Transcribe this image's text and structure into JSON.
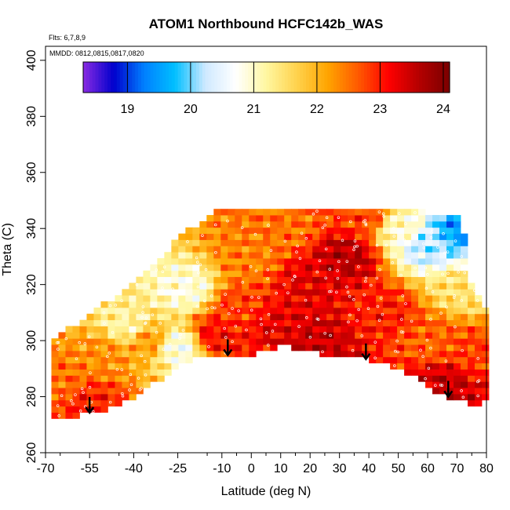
{
  "chart_data": {
    "type": "heatmap",
    "title": "ATOM1 Northbound HCFC142b_WAS",
    "annotations": {
      "flights": "Flts: 6,7,8,9",
      "dates": "MMDD: 0812,0815,0817,0820"
    },
    "xlabel": "Latitude (deg N)",
    "ylabel": "Theta (C)",
    "xlim": [
      -70,
      80
    ],
    "ylim": [
      260,
      405
    ],
    "x_ticks": [
      -70,
      -55,
      -40,
      -25,
      -10,
      0,
      10,
      20,
      30,
      40,
      50,
      60,
      70,
      80
    ],
    "x_tick_labels": [
      "-70",
      "-55",
      "-40",
      "-25",
      "-10",
      "0",
      "10",
      "20",
      "30",
      "40",
      "50",
      "60",
      "70",
      "80"
    ],
    "y_ticks": [
      260,
      280,
      300,
      320,
      340,
      360,
      380,
      400
    ],
    "y_tick_labels": [
      "260",
      "280",
      "300",
      "320",
      "340",
      "360",
      "380",
      "400"
    ],
    "colorbar": {
      "range": [
        18.3,
        24.1
      ],
      "ticks": [
        19,
        20,
        21,
        22,
        23,
        24
      ],
      "tick_labels": [
        "19",
        "20",
        "21",
        "22",
        "23",
        "24"
      ],
      "colors": [
        "#8a2be2",
        "#0000cd",
        "#0080ff",
        "#00bfff",
        "#cfe9ff",
        "#ffffff",
        "#fff7a0",
        "#ffd24d",
        "#ffa500",
        "#ff5a00",
        "#ff0000",
        "#b40000",
        "#7a0000"
      ]
    },
    "profile_markers_latitude": [
      -55,
      -8,
      39,
      67
    ],
    "domain_outline": {
      "bottom": [
        [
          -68,
          273
        ],
        [
          -60,
          273
        ],
        [
          -55,
          274
        ],
        [
          -48,
          276
        ],
        [
          -40,
          280
        ],
        [
          -30,
          287
        ],
        [
          -22,
          293
        ],
        [
          -12,
          294
        ],
        [
          -5,
          295
        ],
        [
          0,
          295
        ],
        [
          10,
          298
        ],
        [
          20,
          296
        ],
        [
          30,
          294
        ],
        [
          40,
          293
        ],
        [
          50,
          290
        ],
        [
          55,
          287
        ],
        [
          60,
          283
        ],
        [
          66,
          280
        ],
        [
          70,
          279
        ],
        [
          75,
          277
        ],
        [
          80,
          278
        ]
      ],
      "top": [
        [
          -68,
          300
        ],
        [
          -60,
          306
        ],
        [
          -50,
          313
        ],
        [
          -40,
          320
        ],
        [
          -30,
          331
        ],
        [
          -24,
          337
        ],
        [
          -18,
          342
        ],
        [
          -15,
          345
        ],
        [
          -12,
          347
        ],
        [
          -5,
          348
        ],
        [
          10,
          348
        ],
        [
          25,
          348
        ],
        [
          40,
          348
        ],
        [
          48,
          347
        ],
        [
          60,
          346
        ],
        [
          65,
          344
        ],
        [
          72,
          344
        ]
      ],
      "right_edge": [
        [
          72,
          344
        ],
        [
          73,
          330
        ],
        [
          75,
          320
        ],
        [
          80,
          310
        ],
        [
          80,
          278
        ]
      ]
    },
    "field_samples": [
      {
        "lat": -65,
        "theta": 285,
        "value": 22.5
      },
      {
        "lat": -55,
        "theta": 278,
        "value": 23.0
      },
      {
        "lat": -50,
        "theta": 295,
        "value": 22.3
      },
      {
        "lat": -42,
        "theta": 305,
        "value": 21.2
      },
      {
        "lat": -35,
        "theta": 300,
        "value": 22.2
      },
      {
        "lat": -25,
        "theta": 298,
        "value": 20.8
      },
      {
        "lat": -22,
        "theta": 318,
        "value": 20.9
      },
      {
        "lat": -12,
        "theta": 302,
        "value": 23.1
      },
      {
        "lat": -5,
        "theta": 312,
        "value": 22.8
      },
      {
        "lat": 0,
        "theta": 330,
        "value": 22.4
      },
      {
        "lat": 10,
        "theta": 305,
        "value": 23.3
      },
      {
        "lat": 12,
        "theta": 340,
        "value": 22.5
      },
      {
        "lat": 22,
        "theta": 300,
        "value": 23.5
      },
      {
        "lat": 20,
        "theta": 322,
        "value": 23.3
      },
      {
        "lat": 32,
        "theta": 330,
        "value": 23.6
      },
      {
        "lat": 38,
        "theta": 345,
        "value": 22.8
      },
      {
        "lat": 45,
        "theta": 310,
        "value": 23.0
      },
      {
        "lat": 52,
        "theta": 340,
        "value": 21.0
      },
      {
        "lat": 60,
        "theta": 335,
        "value": 20.2
      },
      {
        "lat": 70,
        "theta": 340,
        "value": 19.5
      },
      {
        "lat": 62,
        "theta": 300,
        "value": 22.6
      },
      {
        "lat": 66,
        "theta": 285,
        "value": 23.5
      },
      {
        "lat": 75,
        "theta": 295,
        "value": 22.8
      },
      {
        "lat": 72,
        "theta": 318,
        "value": 21.5
      }
    ]
  }
}
